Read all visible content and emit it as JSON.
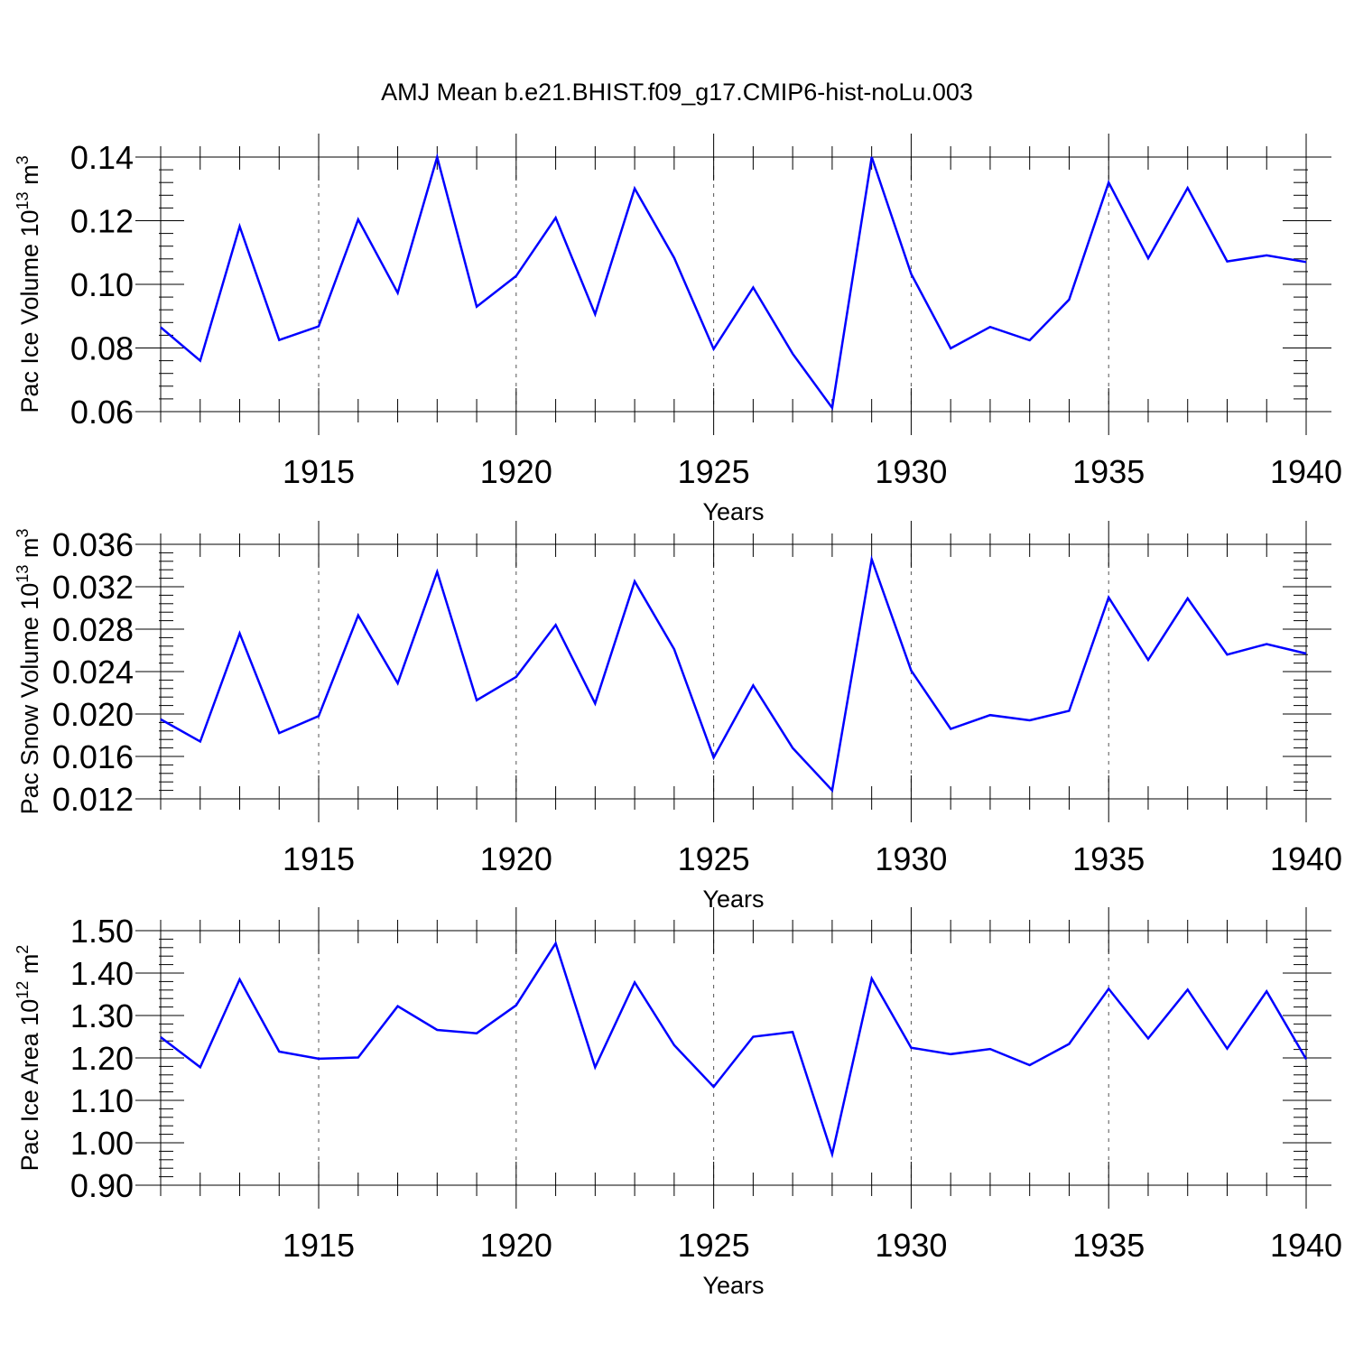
{
  "figure": {
    "title": "AMJ Mean b.e21.BHIST.f09_g17.CMIP6-hist-noLu.003"
  },
  "chart_data": [
    {
      "type": "line",
      "title": "AMJ Mean b.e21.BHIST.f09_g17.CMIP6-hist-noLu.003",
      "xlabel": "Years",
      "ylabel_text": "Pac Ice Volume 10",
      "ylabel_exp": "13",
      "ylabel_unit": " m",
      "ylabel_unit_exp": "3",
      "xlim": [
        1911,
        1940
      ],
      "ylim": [
        0.06,
        0.14
      ],
      "xticks": [
        1915,
        1920,
        1925,
        1930,
        1935,
        1940
      ],
      "yticks": [
        "0.06",
        "0.08",
        "0.10",
        "0.12",
        "0.14"
      ],
      "grid": "vertical dashed at major x ticks",
      "color": "#0000ff",
      "x": [
        1911,
        1912,
        1913,
        1914,
        1915,
        1916,
        1917,
        1918,
        1919,
        1920,
        1921,
        1922,
        1923,
        1924,
        1925,
        1926,
        1927,
        1928,
        1929,
        1930,
        1931,
        1932,
        1933,
        1934,
        1935,
        1936,
        1937,
        1938,
        1939,
        1940
      ],
      "values": [
        0.0865,
        0.076,
        0.1182,
        0.0825,
        0.0868,
        0.1204,
        0.0973,
        0.14,
        0.093,
        0.1026,
        0.1209,
        0.0906,
        0.1301,
        0.1083,
        0.0797,
        0.099,
        0.0782,
        0.0612,
        0.14,
        0.1033,
        0.0799,
        0.0866,
        0.0824,
        0.0952,
        0.132,
        0.1082,
        0.1303,
        0.1072,
        0.1091,
        0.107
      ]
    },
    {
      "type": "line",
      "xlabel": "Years",
      "ylabel_text": "Pac Snow Volume 10",
      "ylabel_exp": "13",
      "ylabel_unit": " m",
      "ylabel_unit_exp": "3",
      "xlim": [
        1911,
        1940
      ],
      "ylim": [
        0.012,
        0.036
      ],
      "xticks": [
        1915,
        1920,
        1925,
        1930,
        1935,
        1940
      ],
      "yticks": [
        "0.012",
        "0.016",
        "0.020",
        "0.024",
        "0.028",
        "0.032",
        "0.036"
      ],
      "grid": "vertical dashed at major x ticks",
      "color": "#0000ff",
      "x": [
        1911,
        1912,
        1913,
        1914,
        1915,
        1916,
        1917,
        1918,
        1919,
        1920,
        1921,
        1922,
        1923,
        1924,
        1925,
        1926,
        1927,
        1928,
        1929,
        1930,
        1931,
        1932,
        1933,
        1934,
        1935,
        1936,
        1937,
        1938,
        1939,
        1940
      ],
      "values": [
        0.0195,
        0.0174,
        0.0276,
        0.0182,
        0.0198,
        0.0293,
        0.0229,
        0.0334,
        0.0213,
        0.0235,
        0.0284,
        0.021,
        0.0325,
        0.0261,
        0.0159,
        0.0227,
        0.0168,
        0.0128,
        0.0346,
        0.0241,
        0.0186,
        0.0199,
        0.0194,
        0.0203,
        0.031,
        0.0251,
        0.0309,
        0.0256,
        0.0266,
        0.0257
      ]
    },
    {
      "type": "line",
      "xlabel": "Years",
      "ylabel_text": "Pac Ice Area 10",
      "ylabel_exp": "12",
      "ylabel_unit": " m",
      "ylabel_unit_exp": "2",
      "xlim": [
        1911,
        1940
      ],
      "ylim": [
        0.9,
        1.5
      ],
      "xticks": [
        1915,
        1920,
        1925,
        1930,
        1935,
        1940
      ],
      "yticks": [
        "0.90",
        "1.00",
        "1.10",
        "1.20",
        "1.30",
        "1.40",
        "1.50"
      ],
      "grid": "vertical dashed at major x ticks",
      "color": "#0000ff",
      "x": [
        1911,
        1912,
        1913,
        1914,
        1915,
        1916,
        1917,
        1918,
        1919,
        1920,
        1921,
        1922,
        1923,
        1924,
        1925,
        1926,
        1927,
        1928,
        1929,
        1930,
        1931,
        1932,
        1933,
        1934,
        1935,
        1936,
        1937,
        1938,
        1939,
        1940
      ],
      "values": [
        1.249,
        1.178,
        1.385,
        1.215,
        1.198,
        1.201,
        1.322,
        1.266,
        1.258,
        1.324,
        1.47,
        1.178,
        1.378,
        1.23,
        1.132,
        1.25,
        1.261,
        0.973,
        1.387,
        1.224,
        1.209,
        1.221,
        1.183,
        1.233,
        1.363,
        1.246,
        1.361,
        1.222,
        1.357,
        1.197
      ]
    }
  ]
}
